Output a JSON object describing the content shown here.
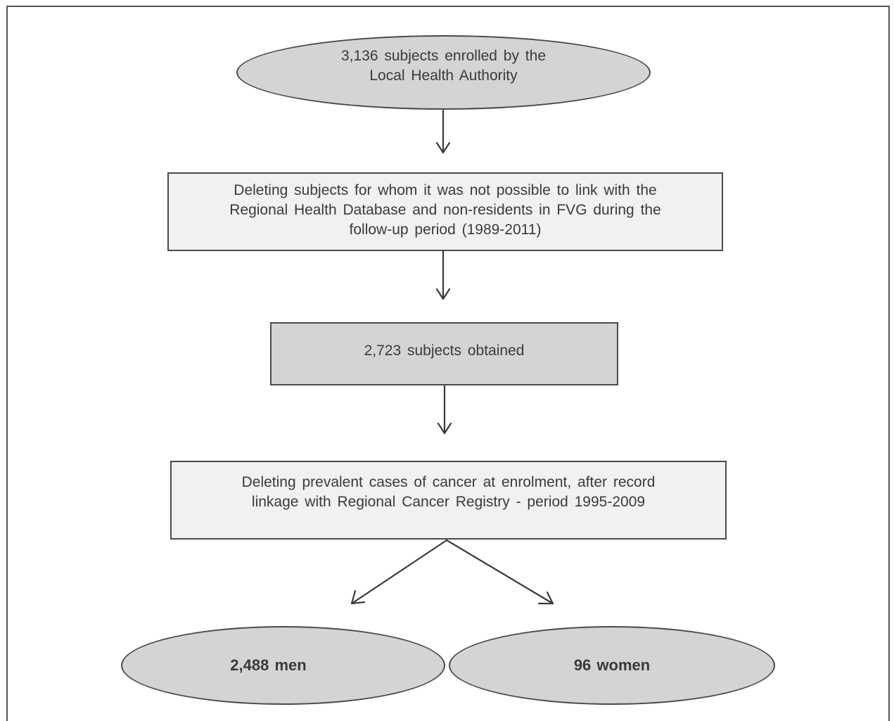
{
  "flowchart": {
    "enrolled": "3,136 subjects enrolled by the\nLocal Health Authority",
    "deleting_nonlinked": "Deleting subjects for whom it was not possible to link with the\nRegional Health Database and non-residents in FVG during the\nfollow-up period (1989-2011)",
    "obtained": "2,723 subjects obtained",
    "deleting_prevalent": "Deleting prevalent cases of cancer at enrolment, after record\nlinkage with Regional Cancer Registry - period 1995-2009",
    "men": "2,488 men",
    "women": "96 women"
  }
}
